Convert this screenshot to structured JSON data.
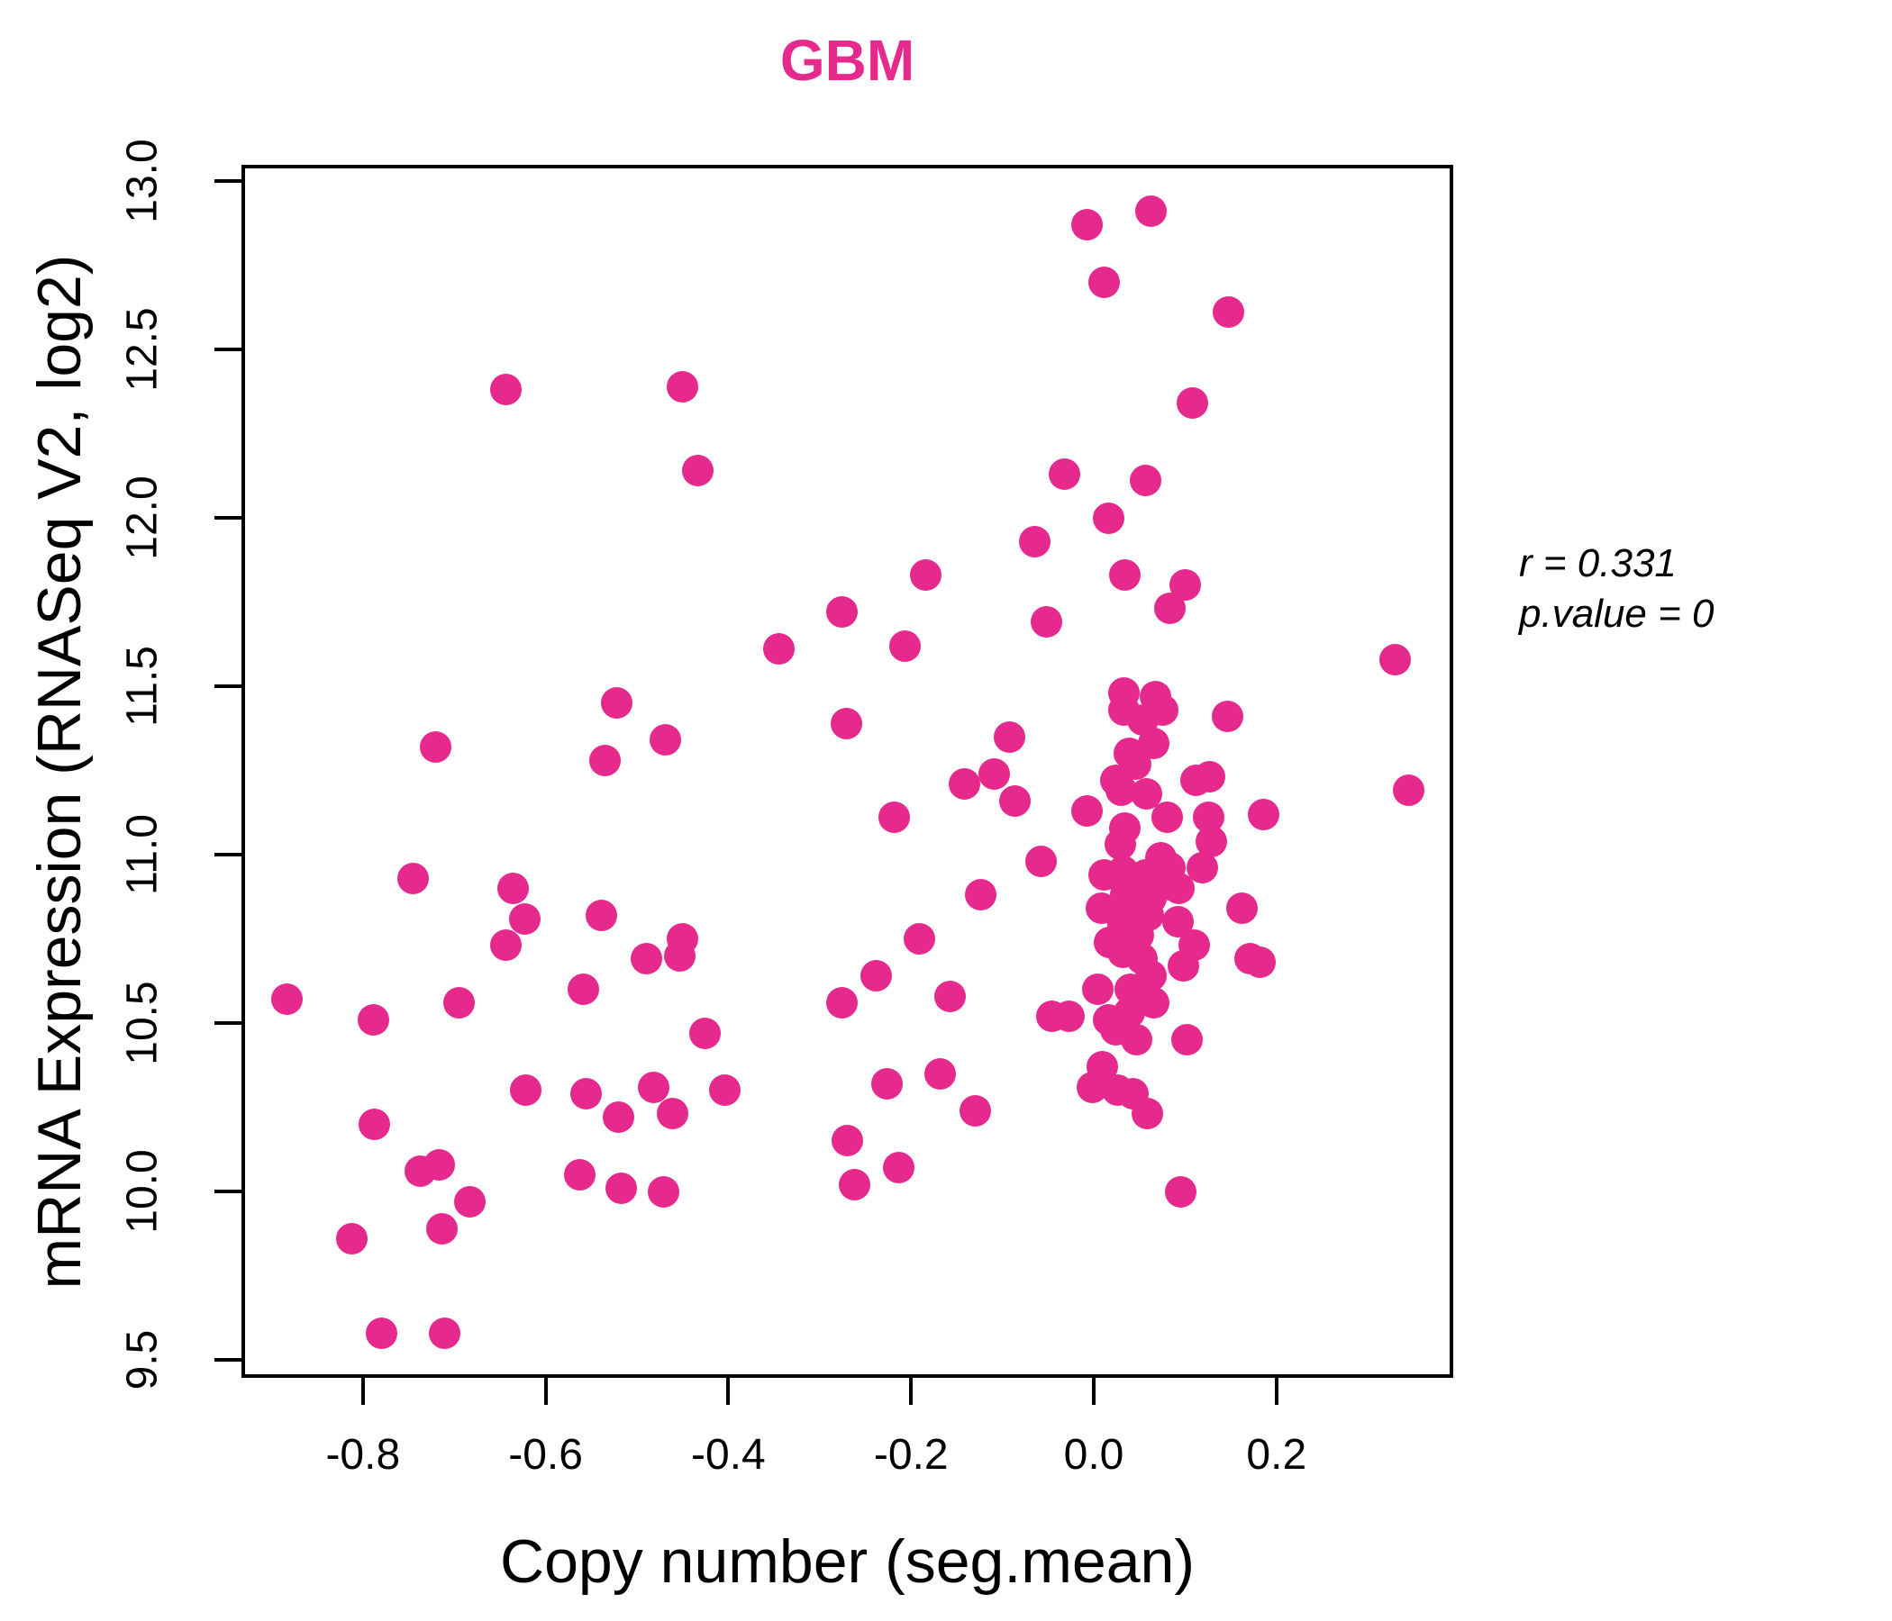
{
  "chart_data": {
    "type": "scatter",
    "title": "GBM",
    "title_color": "#E6298C",
    "xlabel": "Copy number (seg.mean)",
    "ylabel": "mRNA Expression (RNASeq V2, log2)",
    "xlim": [
      -0.93,
      0.39
    ],
    "ylim": [
      9.45,
      13.04
    ],
    "grid": false,
    "legend": "none",
    "point_color": "#E6298C",
    "x_ticks": {
      "values": [
        -0.8,
        -0.6,
        -0.4,
        -0.2,
        0.0,
        0.2
      ],
      "labels": [
        "-0.8",
        "-0.6",
        "-0.4",
        "-0.2",
        "0.0",
        "0.2"
      ]
    },
    "y_ticks": {
      "values": [
        9.5,
        10.0,
        10.5,
        11.0,
        11.5,
        12.0,
        12.5,
        13.0
      ],
      "labels": [
        "9.5",
        "10.0",
        "10.5",
        "11.0",
        "11.5",
        "12.0",
        "12.5",
        "13.0"
      ]
    },
    "annotation": {
      "line1": "r = 0.331",
      "line2": "p.value = 0"
    },
    "points": [
      [
        -0.643,
        12.38
      ],
      [
        -0.45,
        12.39
      ],
      [
        -0.433,
        12.14
      ],
      [
        -0.065,
        11.93
      ],
      [
        -0.007,
        12.87
      ],
      [
        0.063,
        12.91
      ],
      [
        0.011,
        12.7
      ],
      [
        0.147,
        12.61
      ],
      [
        0.108,
        12.34
      ],
      [
        -0.032,
        12.13
      ],
      [
        0.057,
        12.11
      ],
      [
        0.016,
        12.0
      ],
      [
        -0.522,
        11.45
      ],
      [
        -0.72,
        11.32
      ],
      [
        -0.535,
        11.28
      ],
      [
        -0.745,
        10.93
      ],
      [
        -0.636,
        10.9
      ],
      [
        -0.623,
        10.81
      ],
      [
        -0.539,
        10.82
      ],
      [
        -0.643,
        10.73
      ],
      [
        -0.49,
        10.69
      ],
      [
        -0.184,
        11.83
      ],
      [
        -0.276,
        11.72
      ],
      [
        -0.052,
        11.69
      ],
      [
        -0.345,
        11.61
      ],
      [
        -0.207,
        11.62
      ],
      [
        -0.271,
        11.39
      ],
      [
        -0.469,
        11.34
      ],
      [
        -0.092,
        11.35
      ],
      [
        -0.109,
        11.24
      ],
      [
        -0.142,
        11.21
      ],
      [
        -0.086,
        11.16
      ],
      [
        -0.218,
        11.11
      ],
      [
        -0.058,
        10.98
      ],
      [
        -0.124,
        10.88
      ],
      [
        -0.191,
        10.75
      ],
      [
        -0.45,
        10.75
      ],
      [
        -0.453,
        10.7
      ],
      [
        -0.238,
        10.64
      ],
      [
        0.034,
        11.83
      ],
      [
        0.1,
        11.8
      ],
      [
        0.083,
        11.73
      ],
      [
        0.33,
        11.58
      ],
      [
        0.033,
        11.48
      ],
      [
        0.068,
        11.47
      ],
      [
        0.033,
        11.43
      ],
      [
        0.075,
        11.43
      ],
      [
        0.054,
        11.4
      ],
      [
        0.146,
        11.41
      ],
      [
        0.066,
        11.33
      ],
      [
        0.039,
        11.3
      ],
      [
        0.046,
        11.27
      ],
      [
        0.024,
        11.22
      ],
      [
        0.03,
        11.19
      ],
      [
        0.112,
        11.22
      ],
      [
        0.127,
        11.23
      ],
      [
        0.058,
        11.18
      ],
      [
        0.345,
        11.19
      ],
      [
        -0.007,
        11.13
      ],
      [
        0.08,
        11.11
      ],
      [
        0.126,
        11.11
      ],
      [
        0.186,
        11.12
      ],
      [
        0.034,
        11.08
      ],
      [
        0.029,
        11.03
      ],
      [
        0.129,
        11.04
      ],
      [
        0.073,
        10.99
      ],
      [
        0.083,
        10.96
      ],
      [
        0.119,
        10.96
      ],
      [
        0.011,
        10.94
      ],
      [
        0.032,
        10.95
      ],
      [
        0.044,
        10.93
      ],
      [
        0.057,
        10.94
      ],
      [
        0.07,
        10.92
      ],
      [
        0.083,
        10.91
      ],
      [
        0.093,
        10.9
      ],
      [
        0.053,
        10.89
      ],
      [
        0.035,
        10.88
      ],
      [
        0.063,
        10.87
      ],
      [
        0.008,
        10.84
      ],
      [
        0.029,
        10.82
      ],
      [
        0.06,
        10.82
      ],
      [
        0.092,
        10.8
      ],
      [
        0.162,
        10.84
      ],
      [
        0.032,
        10.79
      ],
      [
        0.049,
        10.76
      ],
      [
        0.017,
        10.74
      ],
      [
        0.032,
        10.71
      ],
      [
        0.053,
        10.69
      ],
      [
        0.11,
        10.73
      ],
      [
        0.098,
        10.67
      ],
      [
        0.171,
        10.69
      ],
      [
        0.182,
        10.68
      ],
      [
        0.063,
        10.64
      ],
      [
        -0.883,
        10.57
      ],
      [
        -0.788,
        10.51
      ],
      [
        -0.695,
        10.56
      ],
      [
        -0.559,
        10.6
      ],
      [
        -0.622,
        10.3
      ],
      [
        -0.556,
        10.29
      ],
      [
        -0.52,
        10.22
      ],
      [
        -0.787,
        10.2
      ],
      [
        -0.737,
        10.06
      ],
      [
        -0.716,
        10.08
      ],
      [
        -0.683,
        9.97
      ],
      [
        -0.714,
        9.89
      ],
      [
        -0.812,
        9.86
      ],
      [
        -0.563,
        10.05
      ],
      [
        -0.517,
        10.01
      ],
      [
        -0.78,
        9.58
      ],
      [
        -0.711,
        9.58
      ],
      [
        -0.276,
        10.56
      ],
      [
        -0.157,
        10.58
      ],
      [
        -0.426,
        10.47
      ],
      [
        -0.482,
        10.31
      ],
      [
        -0.404,
        10.3
      ],
      [
        -0.461,
        10.23
      ],
      [
        -0.226,
        10.32
      ],
      [
        -0.168,
        10.35
      ],
      [
        -0.13,
        10.24
      ],
      [
        -0.27,
        10.15
      ],
      [
        -0.214,
        10.07
      ],
      [
        -0.262,
        10.02
      ],
      [
        -0.471,
        10.0
      ],
      [
        0.004,
        10.6
      ],
      [
        0.04,
        10.6
      ],
      [
        -0.027,
        10.52
      ],
      [
        -0.046,
        10.52
      ],
      [
        0.016,
        10.51
      ],
      [
        0.024,
        10.48
      ],
      [
        0.047,
        10.45
      ],
      [
        0.039,
        10.53
      ],
      [
        0.066,
        10.56
      ],
      [
        0.102,
        10.45
      ],
      [
        0.009,
        10.37
      ],
      [
        -0.001,
        10.31
      ],
      [
        0.026,
        10.3
      ],
      [
        0.043,
        10.29
      ],
      [
        0.059,
        10.23
      ],
      [
        0.095,
        10.0
      ]
    ]
  }
}
